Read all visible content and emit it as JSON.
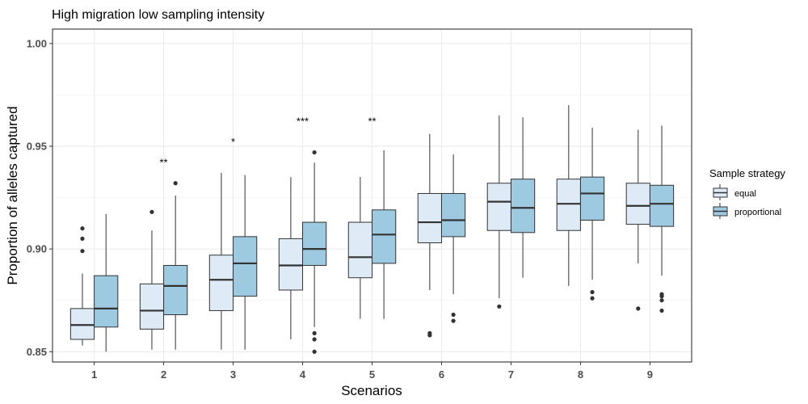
{
  "chart_data": {
    "type": "box",
    "title": "High migration low sampling intensity",
    "xlabel": "Scenarios",
    "ylabel": "Proportion of alleles captured",
    "ylim": [
      0.845,
      1.007
    ],
    "yticks": [
      0.85,
      0.9,
      0.95,
      1.0
    ],
    "ytick_labels": [
      "0.85",
      "0.90",
      "0.95",
      "1.00"
    ],
    "categories": [
      "1",
      "2",
      "3",
      "4",
      "5",
      "6",
      "7",
      "8",
      "9"
    ],
    "grid": true,
    "legend": {
      "title": "Sample strategy",
      "position": "right"
    },
    "series": [
      {
        "name": "equal",
        "color": "#deebf7",
        "boxes": [
          {
            "min": 0.853,
            "q1": 0.856,
            "median": 0.863,
            "q3": 0.871,
            "max": 0.888,
            "outliers": [
              0.91,
              0.905,
              0.899
            ]
          },
          {
            "min": 0.851,
            "q1": 0.861,
            "median": 0.87,
            "q3": 0.883,
            "max": 0.909,
            "outliers": [
              0.918
            ]
          },
          {
            "min": 0.851,
            "q1": 0.87,
            "median": 0.885,
            "q3": 0.897,
            "max": 0.937,
            "outliers": []
          },
          {
            "min": 0.856,
            "q1": 0.88,
            "median": 0.892,
            "q3": 0.905,
            "max": 0.935,
            "outliers": []
          },
          {
            "min": 0.866,
            "q1": 0.886,
            "median": 0.896,
            "q3": 0.913,
            "max": 0.935,
            "outliers": []
          },
          {
            "min": 0.88,
            "q1": 0.903,
            "median": 0.913,
            "q3": 0.927,
            "max": 0.956,
            "outliers": [
              0.859,
              0.858
            ]
          },
          {
            "min": 0.876,
            "q1": 0.909,
            "median": 0.923,
            "q3": 0.932,
            "max": 0.965,
            "outliers": [
              0.872
            ]
          },
          {
            "min": 0.882,
            "q1": 0.909,
            "median": 0.922,
            "q3": 0.934,
            "max": 0.97,
            "outliers": []
          },
          {
            "min": 0.893,
            "q1": 0.912,
            "median": 0.921,
            "q3": 0.932,
            "max": 0.958,
            "outliers": [
              0.871
            ]
          }
        ]
      },
      {
        "name": "proportional",
        "color": "#9ecae1",
        "boxes": [
          {
            "min": 0.85,
            "q1": 0.862,
            "median": 0.871,
            "q3": 0.887,
            "max": 0.917,
            "outliers": []
          },
          {
            "min": 0.851,
            "q1": 0.868,
            "median": 0.882,
            "q3": 0.892,
            "max": 0.926,
            "outliers": [
              0.932
            ]
          },
          {
            "min": 0.851,
            "q1": 0.877,
            "median": 0.893,
            "q3": 0.906,
            "max": 0.936,
            "outliers": []
          },
          {
            "min": 0.862,
            "q1": 0.892,
            "median": 0.9,
            "q3": 0.913,
            "max": 0.942,
            "outliers": [
              0.947,
              0.859,
              0.856,
              0.85
            ]
          },
          {
            "min": 0.866,
            "q1": 0.893,
            "median": 0.907,
            "q3": 0.919,
            "max": 0.948,
            "outliers": []
          },
          {
            "min": 0.878,
            "q1": 0.906,
            "median": 0.914,
            "q3": 0.927,
            "max": 0.946,
            "outliers": [
              0.868,
              0.865
            ]
          },
          {
            "min": 0.886,
            "q1": 0.908,
            "median": 0.92,
            "q3": 0.934,
            "max": 0.964,
            "outliers": []
          },
          {
            "min": 0.885,
            "q1": 0.914,
            "median": 0.927,
            "q3": 0.935,
            "max": 0.959,
            "outliers": [
              0.879,
              0.876
            ]
          },
          {
            "min": 0.887,
            "q1": 0.911,
            "median": 0.922,
            "q3": 0.931,
            "max": 0.96,
            "outliers": [
              0.878,
              0.877,
              0.875,
              0.87
            ]
          }
        ]
      }
    ],
    "annotations": [
      {
        "category": "2",
        "text": "**",
        "y": 0.942
      },
      {
        "category": "3",
        "text": "*",
        "y": 0.952
      },
      {
        "category": "4",
        "text": "***",
        "y": 0.962
      },
      {
        "category": "5",
        "text": "**",
        "y": 0.962
      }
    ]
  }
}
